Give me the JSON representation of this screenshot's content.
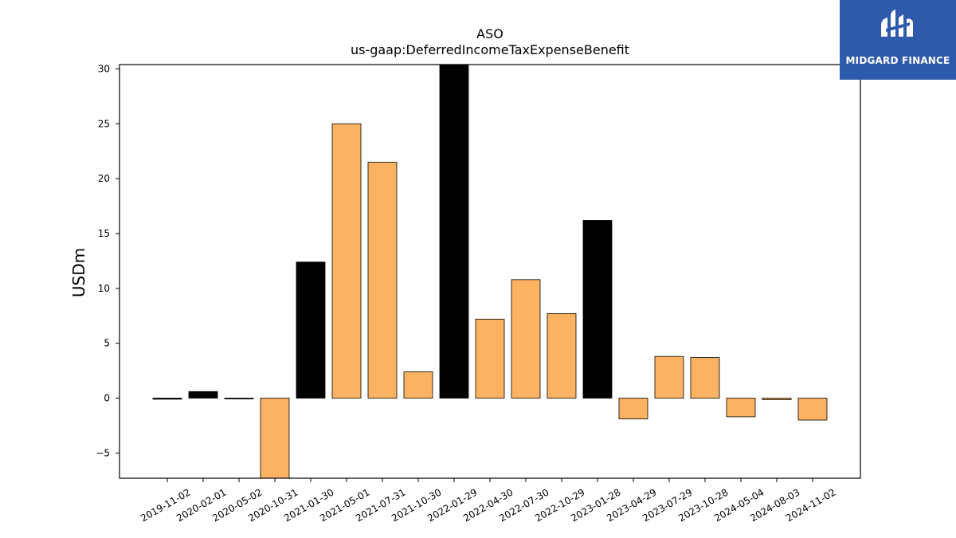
{
  "chart_data": {
    "type": "bar",
    "title": "ASO",
    "subtitle": "us-gaap:DeferredIncomeTaxExpenseBenefit",
    "ylabel": "USDm",
    "xlabel": "",
    "ylim": [
      -7.3,
      30.4
    ],
    "yticks": [
      -5,
      0,
      5,
      10,
      15,
      20,
      25,
      30
    ],
    "ytick_labels": [
      "−5",
      "0",
      "5",
      "10",
      "15",
      "20",
      "25",
      "30"
    ],
    "categories": [
      "2019-11-02",
      "2020-02-01",
      "2020-05-02",
      "2020-10-31",
      "2021-01-30",
      "2021-05-01",
      "2021-07-31",
      "2021-10-30",
      "2022-01-29",
      "2022-04-30",
      "2022-07-30",
      "2022-10-29",
      "2023-01-28",
      "2023-04-29",
      "2023-07-29",
      "2023-10-28",
      "2024-05-04",
      "2024-08-03",
      "2024-11-02"
    ],
    "values": [
      -0.1,
      0.6,
      -0.05,
      -7.3,
      12.4,
      25.0,
      21.5,
      2.4,
      30.4,
      7.2,
      10.8,
      7.7,
      16.2,
      -1.9,
      3.8,
      3.7,
      -1.7,
      -0.15,
      -2.0
    ],
    "bar_colors": [
      "#000000",
      "#000000",
      "#000000",
      "#fbb363",
      "#000000",
      "#fbb363",
      "#fbb363",
      "#fbb363",
      "#000000",
      "#fbb363",
      "#fbb363",
      "#fbb363",
      "#000000",
      "#fbb363",
      "#fbb363",
      "#fbb363",
      "#fbb363",
      "#fbb363",
      "#fbb363"
    ],
    "grid": false,
    "legend": "none"
  },
  "logo": {
    "text": "MIDGARD FINANCE",
    "background": "#2e5aac",
    "icon": "midgard-logo-icon"
  }
}
